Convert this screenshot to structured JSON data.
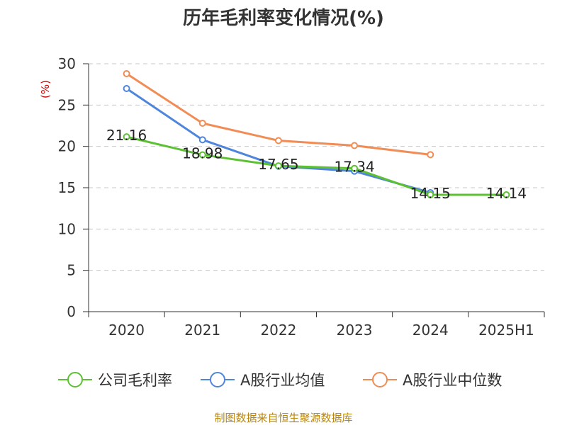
{
  "chart_data": {
    "type": "line",
    "title": "历年毛利率变化情况(%)",
    "ylabel": "(%)",
    "categories": [
      "2020",
      "2021",
      "2022",
      "2023",
      "2024",
      "2025H1"
    ],
    "ylim": [
      0,
      30
    ],
    "yticks": [
      0,
      5,
      10,
      15,
      20,
      25,
      30
    ],
    "grid": true,
    "legend_position": "bottom",
    "series": [
      {
        "name": "公司毛利率",
        "color": "#5cc132",
        "values": [
          21.16,
          18.98,
          17.65,
          17.34,
          14.15,
          14.14
        ],
        "labels": [
          "21.16",
          "18.98",
          "17.65",
          "17.34",
          "14.15",
          "14.14"
        ]
      },
      {
        "name": "A股行业均值",
        "color": "#4f86dc",
        "values": [
          27.0,
          20.8,
          17.6,
          17.0,
          14.4,
          null
        ]
      },
      {
        "name": "A股行业中位数",
        "color": "#f28c55",
        "values": [
          28.8,
          22.8,
          20.7,
          20.1,
          19.0,
          null
        ]
      }
    ],
    "source": "制图数据来自恒生聚源数据库"
  }
}
